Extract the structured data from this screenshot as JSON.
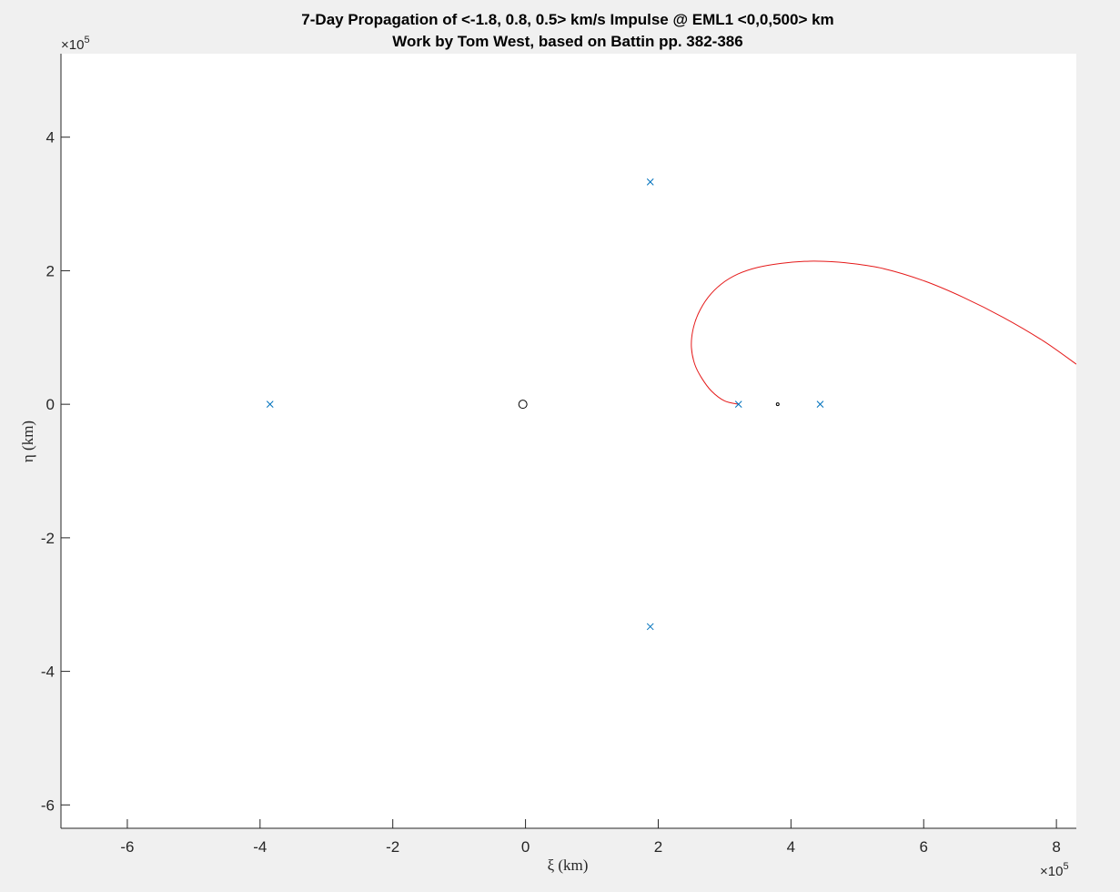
{
  "chart_data": {
    "type": "line",
    "title": "7-Day Propagation of <-1.8, 0.8, 0.5> km/s Impulse @ EML1 <0,0,500> km",
    "subtitle": "Work by Tom West, based on Battin pp. 382-386",
    "xlabel": "ξ (km)",
    "ylabel": "η (km)",
    "x_exponent_label": "×10",
    "x_exponent_power": "5",
    "y_exponent_label": "×10",
    "y_exponent_power": "5",
    "scale": 100000,
    "xlim": [
      -7.0,
      8.3
    ],
    "ylim": [
      -6.35,
      5.25
    ],
    "x_ticks": [
      -6,
      -4,
      -2,
      0,
      2,
      4,
      6,
      8
    ],
    "x_tick_labels": [
      "-6",
      "-4",
      "-2",
      "0",
      "2",
      "4",
      "6",
      "8"
    ],
    "y_ticks": [
      -6,
      -4,
      -2,
      0,
      2,
      4
    ],
    "y_tick_labels": [
      "-6",
      "-4",
      "-2",
      "0",
      "2",
      "4"
    ],
    "grid": false,
    "colors": {
      "trajectory": "#e51a1a",
      "lagrange_points": "#0072bd",
      "bodies": "#000000"
    },
    "series": [
      {
        "marker": "line",
        "color": "#e51a1a",
        "x": [
          3.21,
          3.0,
          2.8,
          2.65,
          2.55,
          2.5,
          2.52,
          2.6,
          2.75,
          2.95,
          3.2,
          3.5,
          3.85,
          4.2,
          4.5,
          4.9,
          5.4,
          6.0,
          6.6,
          7.2,
          7.8,
          8.3
        ],
        "y": [
          0.0,
          0.05,
          0.2,
          0.4,
          0.6,
          0.85,
          1.1,
          1.35,
          1.6,
          1.8,
          1.95,
          2.05,
          2.11,
          2.14,
          2.14,
          2.11,
          2.03,
          1.85,
          1.6,
          1.3,
          0.95,
          0.6
        ]
      },
      {
        "marker": "x",
        "color": "#0072bd",
        "x": [
          -3.85,
          1.88,
          1.88,
          3.21,
          4.44
        ],
        "y": [
          0.0,
          3.33,
          -3.33,
          0.0,
          0.0
        ]
      },
      {
        "marker": "o-large",
        "color": "#000000",
        "x": [
          -0.04
        ],
        "y": [
          0.0
        ]
      },
      {
        "marker": "o-small",
        "color": "#000000",
        "x": [
          3.8
        ],
        "y": [
          0.0
        ]
      }
    ]
  }
}
